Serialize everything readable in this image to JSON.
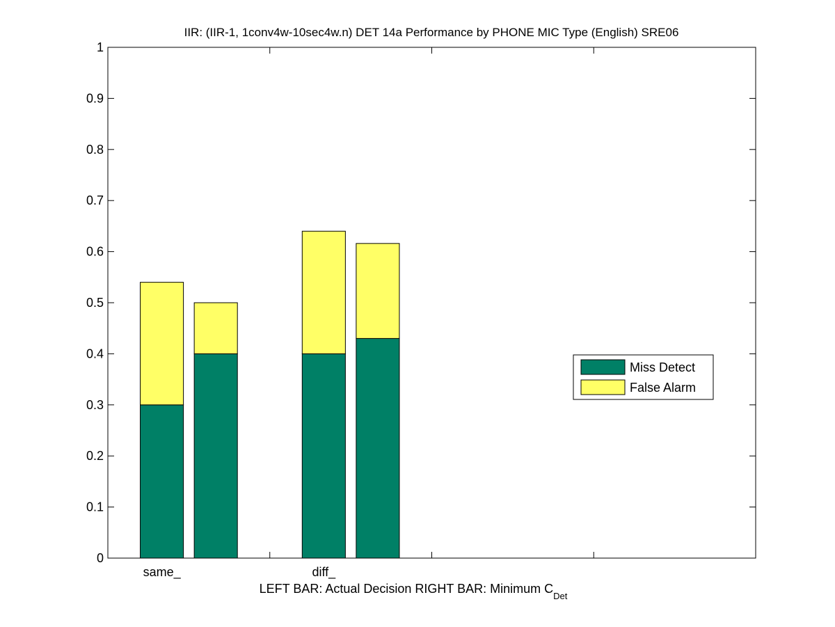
{
  "chart_data": {
    "type": "bar",
    "stacked": true,
    "title": "IIR: (IIR-1, 1conv4w-10sec4w.n) DET 14a Performance by PHONE MIC Type (English) SRE06",
    "xlabel_main": "LEFT BAR: Actual Decision     RIGHT BAR: Minimum C",
    "xlabel_sub": "Det",
    "categories": [
      "same_",
      "diff_"
    ],
    "bar_roles": [
      "Actual Decision",
      "Minimum CDet"
    ],
    "ylim": [
      0,
      1
    ],
    "yticks": [
      "0",
      "0.1",
      "0.2",
      "0.3",
      "0.4",
      "0.5",
      "0.6",
      "0.7",
      "0.8",
      "0.9",
      "1"
    ],
    "series": [
      {
        "name": "Miss Detect",
        "color": "#008066",
        "values": [
          [
            0.3,
            0.4
          ],
          [
            0.4,
            0.43
          ]
        ]
      },
      {
        "name": "False Alarm",
        "color": "#ffff66",
        "values": [
          [
            0.24,
            0.1
          ],
          [
            0.24,
            0.186
          ]
        ]
      }
    ],
    "legend_position": "right"
  }
}
